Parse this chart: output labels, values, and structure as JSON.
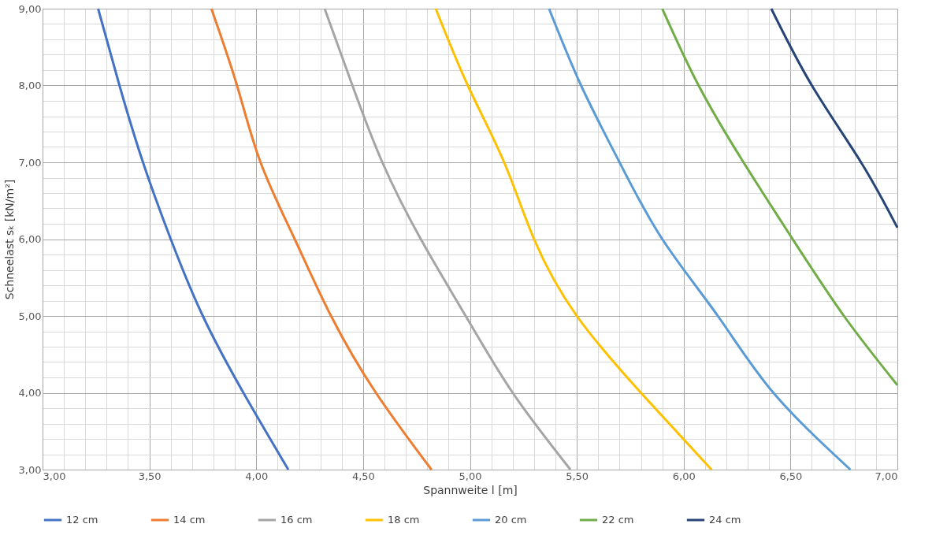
{
  "chart_data": {
    "type": "line",
    "xlabel": "Spannweite l [m]",
    "ylabel": "Schneelast sₖ [kN/m²]",
    "xlim": [
      3,
      7
    ],
    "ylim": [
      3,
      9
    ],
    "xticks": [
      {
        "value": 3,
        "label": "3,00"
      },
      {
        "value": 3.1,
        "label": null
      },
      {
        "value": 3.2,
        "label": null
      },
      {
        "value": 3.3,
        "label": null
      },
      {
        "value": 3.4,
        "label": null
      },
      {
        "value": 3.5,
        "label": "3,50"
      },
      {
        "value": 3.6,
        "label": null
      },
      {
        "value": 3.7,
        "label": null
      },
      {
        "value": 3.8,
        "label": null
      },
      {
        "value": 3.9,
        "label": null
      },
      {
        "value": 4,
        "label": "4,00"
      },
      {
        "value": 4.1,
        "label": null
      },
      {
        "value": 4.2,
        "label": null
      },
      {
        "value": 4.3,
        "label": null
      },
      {
        "value": 4.4,
        "label": null
      },
      {
        "value": 4.5,
        "label": "4,50"
      },
      {
        "value": 4.6,
        "label": null
      },
      {
        "value": 4.7,
        "label": null
      },
      {
        "value": 4.8,
        "label": null
      },
      {
        "value": 4.9,
        "label": null
      },
      {
        "value": 5,
        "label": "5,00"
      },
      {
        "value": 5.1,
        "label": null
      },
      {
        "value": 5.2,
        "label": null
      },
      {
        "value": 5.3,
        "label": null
      },
      {
        "value": 5.4,
        "label": null
      },
      {
        "value": 5.5,
        "label": "5,50"
      },
      {
        "value": 5.6,
        "label": null
      },
      {
        "value": 5.7,
        "label": null
      },
      {
        "value": 5.8,
        "label": null
      },
      {
        "value": 5.9,
        "label": null
      },
      {
        "value": 6,
        "label": "6,00"
      },
      {
        "value": 6.1,
        "label": null
      },
      {
        "value": 6.2,
        "label": null
      },
      {
        "value": 6.3,
        "label": null
      },
      {
        "value": 6.4,
        "label": null
      },
      {
        "value": 6.5,
        "label": "6,50"
      },
      {
        "value": 6.6,
        "label": null
      },
      {
        "value": 6.7,
        "label": null
      },
      {
        "value": 6.8,
        "label": null
      },
      {
        "value": 6.9,
        "label": null
      },
      {
        "value": 7,
        "label": "7,00"
      }
    ],
    "yticks": [
      {
        "value": 3,
        "label": "3,00"
      },
      {
        "value": 3.2,
        "label": null
      },
      {
        "value": 3.4,
        "label": null
      },
      {
        "value": 3.6,
        "label": null
      },
      {
        "value": 3.8,
        "label": null
      },
      {
        "value": 4,
        "label": "4,00"
      },
      {
        "value": 4.2,
        "label": null
      },
      {
        "value": 4.4,
        "label": null
      },
      {
        "value": 4.6,
        "label": null
      },
      {
        "value": 4.8,
        "label": null
      },
      {
        "value": 5,
        "label": "5,00"
      },
      {
        "value": 5.2,
        "label": null
      },
      {
        "value": 5.4,
        "label": null
      },
      {
        "value": 5.6,
        "label": null
      },
      {
        "value": 5.8,
        "label": null
      },
      {
        "value": 6,
        "label": "6,00"
      },
      {
        "value": 6.2,
        "label": null
      },
      {
        "value": 6.4,
        "label": null
      },
      {
        "value": 6.6,
        "label": null
      },
      {
        "value": 6.8,
        "label": null
      },
      {
        "value": 7,
        "label": "7,00"
      },
      {
        "value": 7.2,
        "label": null
      },
      {
        "value": 7.4,
        "label": null
      },
      {
        "value": 7.6,
        "label": null
      },
      {
        "value": 7.8,
        "label": null
      },
      {
        "value": 8,
        "label": "8,00"
      },
      {
        "value": 8.2,
        "label": null
      },
      {
        "value": 8.4,
        "label": null
      },
      {
        "value": 8.6,
        "label": null
      },
      {
        "value": 8.8,
        "label": null
      },
      {
        "value": 9,
        "label": "9,00"
      }
    ],
    "grid": true,
    "legend": "bottom",
    "marker": "none",
    "line_style": "solid",
    "series": [
      {
        "name": "12 cm",
        "color": "#4472c4",
        "x": [
          3.26,
          3.36,
          3.47,
          3.6,
          3.75,
          3.94,
          4.15
        ],
        "values": [
          9,
          8,
          7,
          6,
          5,
          4,
          3
        ]
      },
      {
        "name": "14 cm",
        "color": "#ed7d31",
        "x": [
          3.79,
          3.91,
          4.02,
          4.18,
          4.35,
          4.56,
          4.82
        ],
        "values": [
          9,
          8,
          7,
          6,
          5,
          4,
          3
        ]
      },
      {
        "name": "16 cm",
        "color": "#a5a5a5",
        "x": [
          4.32,
          4.45,
          4.59,
          4.77,
          4.98,
          5.2,
          5.47
        ],
        "values": [
          9,
          8,
          7,
          6,
          5,
          4,
          3
        ]
      },
      {
        "name": "18 cm",
        "color": "#ffc000",
        "x": [
          4.84,
          4.99,
          5.16,
          5.3,
          5.5,
          5.8,
          6.13
        ],
        "values": [
          9,
          8,
          7,
          6,
          5,
          4,
          3
        ]
      },
      {
        "name": "20 cm",
        "color": "#5b9bd5",
        "x": [
          5.37,
          5.52,
          5.7,
          5.9,
          6.16,
          6.42,
          6.78
        ],
        "values": [
          9,
          8,
          7,
          6,
          5,
          4,
          3
        ]
      },
      {
        "name": "22 cm",
        "color": "#70ad47",
        "x": [
          5.9,
          6.07,
          6.28,
          6.51,
          6.75,
          7.0
        ],
        "values": [
          9,
          8,
          7,
          6,
          5,
          4.1
        ]
      },
      {
        "name": "24 cm",
        "color": "#264478",
        "x": [
          6.41,
          6.6,
          6.83,
          7.0
        ],
        "values": [
          9,
          8,
          7,
          6.15
        ]
      }
    ]
  }
}
